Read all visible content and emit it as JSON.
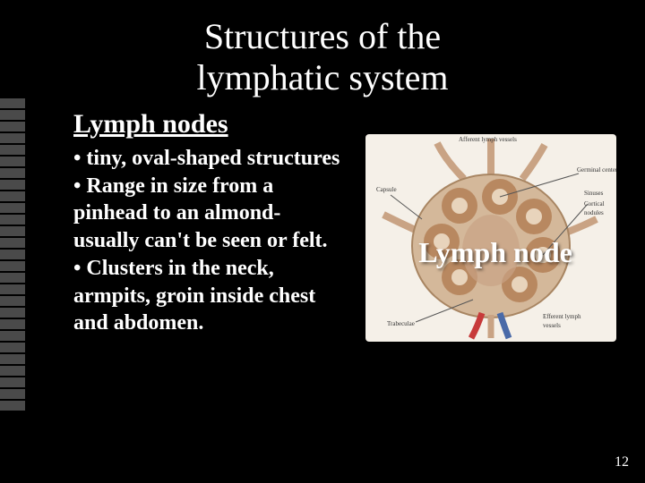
{
  "slide": {
    "title_line1": "Structures of  the",
    "title_line2": "lymphatic system",
    "subtitle": "Lymph nodes",
    "bullets": [
      "tiny, oval-shaped structures",
      "Range in size from a pinhead to an almond- usually can't be seen or felt.",
      "Clusters in the neck, armpits, groin inside chest and abdomen."
    ],
    "image_label": "Lymph node",
    "page_number": "12"
  },
  "style": {
    "background_color": "#000000",
    "text_color": "#ffffff",
    "tick_color": "#4a4a4a",
    "tick_count": 27,
    "title_fontsize": 40,
    "subtitle_fontsize": 30,
    "body_fontsize": 24,
    "image_label_fontsize": 32,
    "page_fontsize": 16,
    "image": {
      "bg": "#f5f0e8",
      "capsule": "#d4b89a",
      "inner": "#c9a384",
      "nodule": "#b88860",
      "vessel_red": "#c73a3a",
      "vessel_blue": "#4a6aa8",
      "annot": "#555555"
    }
  }
}
